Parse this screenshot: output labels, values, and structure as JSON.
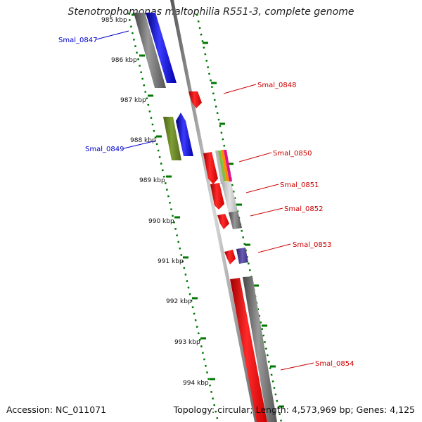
{
  "header": {
    "title": "Stenotrophomonas maltophilia R551-3, complete genome"
  },
  "footer": {
    "accession": "Accession: NC_011071",
    "stats": "Topology: circular; Length: 4,573,969 bp; Genes: 4,125"
  },
  "scale": {
    "unit": "kbp",
    "ticks": [
      "985 kbp",
      "986 kbp",
      "987 kbp",
      "988 kbp",
      "989 kbp",
      "990 kbp",
      "991 kbp",
      "992 kbp",
      "993 kbp",
      "994 kbp"
    ]
  },
  "genes": [
    {
      "id": "Smal_0847",
      "strand": "reverse",
      "color": "#0000cc"
    },
    {
      "id": "Smal_0848",
      "strand": "forward",
      "color": "#cc0000"
    },
    {
      "id": "Smal_0849",
      "strand": "reverse",
      "color": "#0000cc"
    },
    {
      "id": "Smal_0850",
      "strand": "forward",
      "color": "#cc0000"
    },
    {
      "id": "Smal_0851",
      "strand": "forward",
      "color": "#cc0000"
    },
    {
      "id": "Smal_0852",
      "strand": "forward",
      "color": "#cc0000"
    },
    {
      "id": "Smal_0853",
      "strand": "forward",
      "color": "#cc0000"
    },
    {
      "id": "Smal_0854",
      "strand": "forward",
      "color": "#cc0000"
    }
  ],
  "colors": {
    "backbone": "#808080",
    "scale_dots": "#007700",
    "reverse_gene": "#0000ff",
    "forward_gene": "#ff0000",
    "cog_green": "#6b8e23",
    "cog_purple": "#4b3d8f",
    "gray_feature": "#666666",
    "light_gray_feature": "#c8c8c8"
  }
}
